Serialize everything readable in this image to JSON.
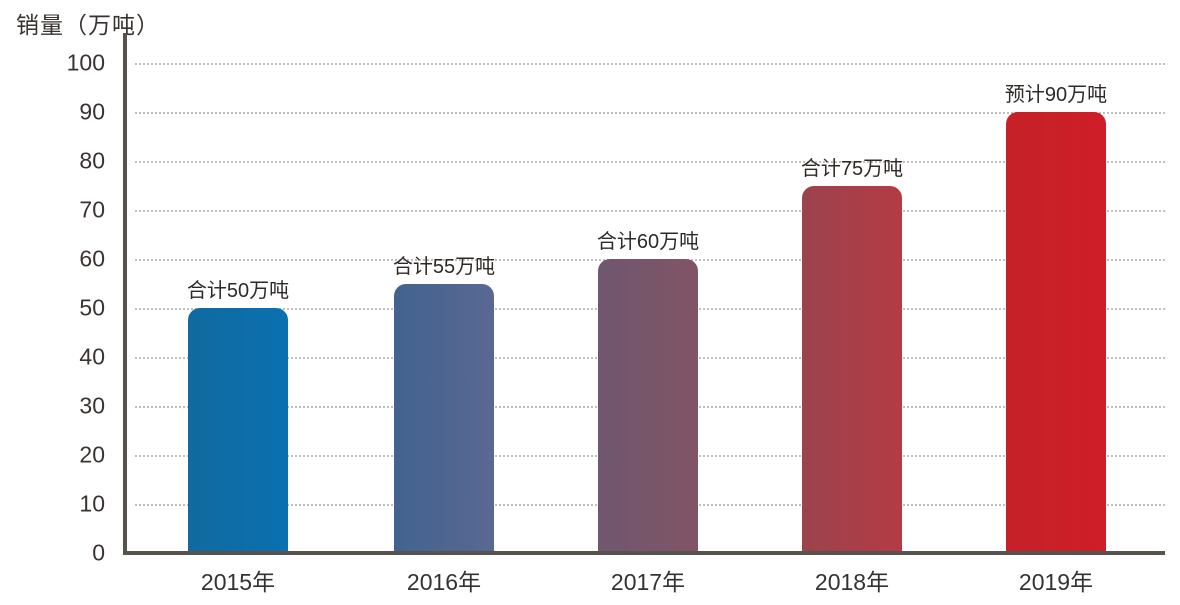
{
  "chart_data": {
    "type": "bar",
    "title": "销量（万吨）",
    "ylabel": "销量（万吨）",
    "xlabel": "",
    "categories": [
      "2015年",
      "2016年",
      "2017年",
      "2018年",
      "2019年"
    ],
    "values": [
      50,
      55,
      60,
      75,
      90
    ],
    "bar_labels": [
      "合计50万吨",
      "合计55万吨",
      "合计60万吨",
      "合计75万吨",
      "预计90万吨"
    ],
    "ylim": [
      0,
      100
    ],
    "yticks": [
      0,
      10,
      20,
      30,
      40,
      50,
      60,
      70,
      80,
      90,
      100
    ],
    "grid": "horizontal-dotted",
    "legend": "none",
    "bar_gradients": [
      [
        "#116a9f",
        "#0a70b0"
      ],
      [
        "#42638f",
        "#596892"
      ],
      [
        "#6f576f",
        "#815465"
      ],
      [
        "#9b434d",
        "#b43b44"
      ],
      [
        "#c62128",
        "#cf1e27"
      ]
    ],
    "axis_color": "#56524e",
    "grid_color": "#c3bebb",
    "text_color": "#3a3331"
  }
}
